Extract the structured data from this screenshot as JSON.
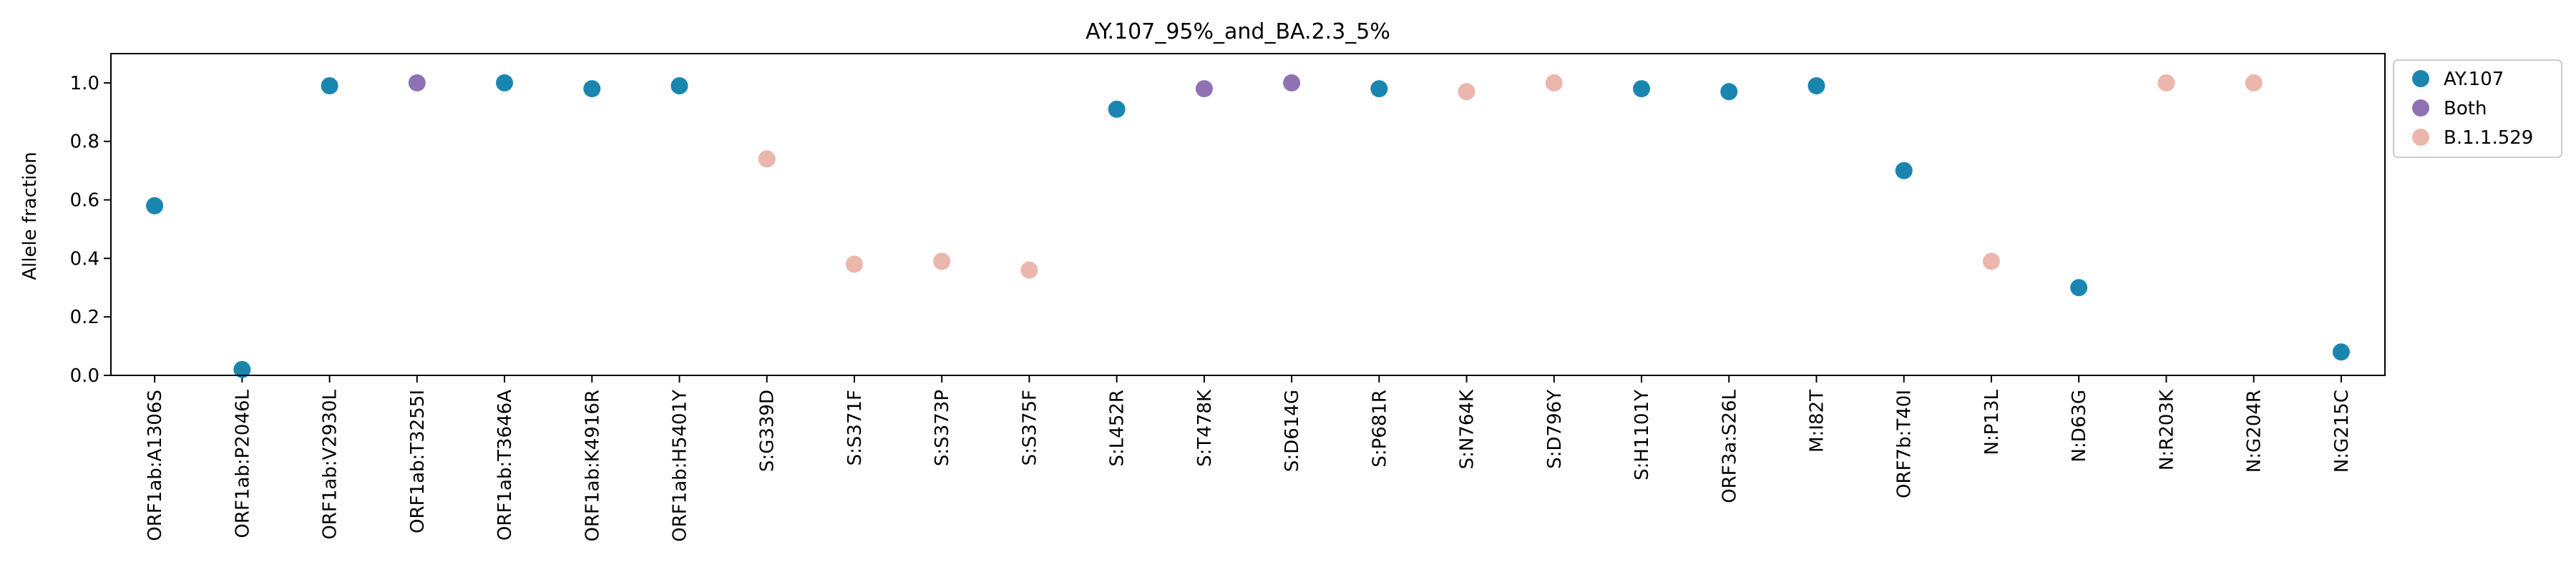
{
  "chart_data": {
    "type": "scatter",
    "title": "AY.107_95%_and_BA.2.3_5%",
    "xlabel": "",
    "ylabel": "Allele fraction",
    "ylim": [
      0,
      1.1
    ],
    "yticks": [
      "0.0",
      "0.2",
      "0.4",
      "0.6",
      "0.8",
      "1.0"
    ],
    "grid": false,
    "legend_position": "outside-top-right",
    "categories": [
      "ORF1ab:A1306S",
      "ORF1ab:P2046L",
      "ORF1ab:V2930L",
      "ORF1ab:T3255I",
      "ORF1ab:T3646A",
      "ORF1ab:K4916R",
      "ORF1ab:H5401Y",
      "S:G339D",
      "S:S371F",
      "S:S373P",
      "S:S375F",
      "S:L452R",
      "S:T478K",
      "S:D614G",
      "S:P681R",
      "S:N764K",
      "S:D796Y",
      "S:H1101Y",
      "ORF3a:S26L",
      "M:I82T",
      "ORF7b:T40I",
      "N:P13L",
      "N:D63G",
      "N:R203K",
      "N:G204R",
      "N:G215C"
    ],
    "values": [
      0.58,
      0.02,
      0.99,
      1.0,
      1.0,
      0.98,
      0.99,
      0.74,
      0.38,
      0.39,
      0.36,
      0.91,
      0.98,
      1.0,
      0.98,
      0.97,
      1.0,
      0.98,
      0.97,
      0.99,
      0.7,
      0.39,
      0.3,
      1.0,
      1.0,
      0.08
    ],
    "groups": [
      "AY.107",
      "AY.107",
      "AY.107",
      "Both",
      "AY.107",
      "AY.107",
      "AY.107",
      "B.1.1.529",
      "B.1.1.529",
      "B.1.1.529",
      "B.1.1.529",
      "AY.107",
      "Both",
      "Both",
      "AY.107",
      "B.1.1.529",
      "B.1.1.529",
      "AY.107",
      "AY.107",
      "AY.107",
      "AY.107",
      "B.1.1.529",
      "AY.107",
      "B.1.1.529",
      "B.1.1.529",
      "AY.107"
    ],
    "legend": [
      {
        "name": "AY.107",
        "color": "#1a86b0"
      },
      {
        "name": "Both",
        "color": "#8e72b4"
      },
      {
        "name": "B.1.1.529",
        "color": "#ebb6ac"
      }
    ]
  }
}
